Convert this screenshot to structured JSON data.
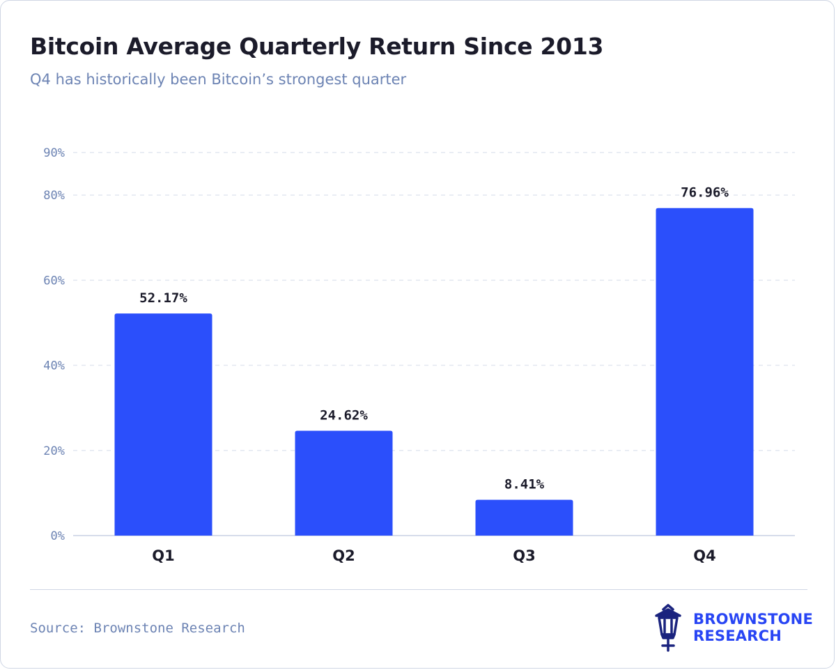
{
  "header": {
    "title": "Bitcoin Average Quarterly Return Since 2013",
    "subtitle": "Q4 has historically been Bitcoin’s strongest quarter"
  },
  "chart_data": {
    "type": "bar",
    "title": "Bitcoin Average Quarterly Return Since 2013",
    "subtitle": "Q4 has historically been Bitcoin’s strongest quarter",
    "categories": [
      "Q1",
      "Q2",
      "Q3",
      "Q4"
    ],
    "values": [
      52.17,
      24.62,
      8.41,
      76.96
    ],
    "value_labels": [
      "52.17%",
      "24.62%",
      "8.41%",
      "76.96%"
    ],
    "xlabel": "",
    "ylabel": "",
    "ylim": [
      0,
      90
    ],
    "y_ticks": [
      0,
      20,
      40,
      60,
      80,
      90
    ],
    "y_tick_labels": [
      "0%",
      "20%",
      "40%",
      "60%",
      "80%",
      "90%"
    ],
    "grid": true,
    "legend": "none",
    "bar_color": "#2b4ffb"
  },
  "footer": {
    "source": "Source: Brownstone Research",
    "logo_line1": "BROWNSTONE",
    "logo_line2": "RESEARCH"
  },
  "colors": {
    "accent": "#2b4ffb",
    "title": "#1b1b2a",
    "muted": "#6c83b3",
    "gridline": "#e2e7f0",
    "logo": "#2845f4",
    "logo_icon": "#1a237e"
  },
  "icons": {
    "brand_logo": "lantern-icon"
  }
}
